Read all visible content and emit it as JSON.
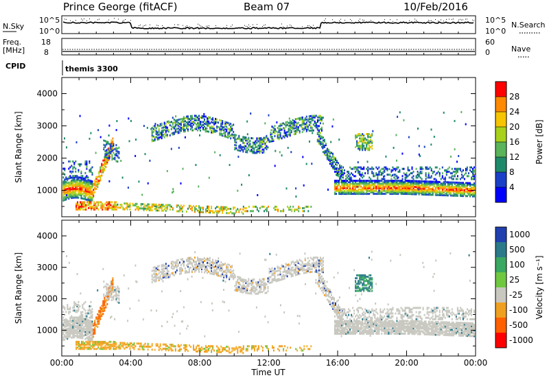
{
  "header": {
    "station": "Prince George (fitACF)",
    "beam": "Beam 07",
    "date": "10/Feb/2016"
  },
  "noise_panel": {
    "left_label": "N.Sky",
    "right_label": "N.Search",
    "left_ticks": [
      "10^5",
      "10^0"
    ],
    "right_ticks": [
      "10^5",
      "10^0"
    ]
  },
  "freq_panel": {
    "left_label_line1": "Freq.",
    "left_label_line2": "[MHz]",
    "right_label": "Nave",
    "left_ticks": [
      "18",
      "8"
    ],
    "right_ticks": [
      "60",
      "0"
    ]
  },
  "cpid": {
    "label": "CPID",
    "value": "themis 3300"
  },
  "chart_data": [
    {
      "type": "heatmap",
      "title": "Power",
      "ylabel": "Slant Range [km]",
      "ylim": [
        180,
        4500
      ],
      "y_ticks": [
        "1000",
        "2000",
        "3000",
        "4000"
      ],
      "colorbar_label": "Power [dB]",
      "colorbar_ticks": [
        "28",
        "24",
        "20",
        "16",
        "12",
        "8",
        "4"
      ],
      "colorbar_colors": [
        "#ff0000",
        "#ff8a00",
        "#f6c400",
        "#a8d21a",
        "#5ab45a",
        "#1f8a6a",
        "#1a40c8",
        "#0000ff"
      ]
    },
    {
      "type": "heatmap",
      "title": "Velocity",
      "ylabel": "Slant Range [km]",
      "ylim": [
        180,
        4500
      ],
      "y_ticks": [
        "1000",
        "2000",
        "3000",
        "4000"
      ],
      "colorbar_label": "Velocity [m s^-1]",
      "colorbar_ticks": [
        "1000",
        "500",
        "100",
        "25",
        "-25",
        "-100",
        "-500",
        "-1000"
      ],
      "colorbar_colors": [
        "#2040b0",
        "#2a7a8a",
        "#3aa860",
        "#70c840",
        "#c8c8c0",
        "#f0a020",
        "#ff6000",
        "#ff0000"
      ]
    }
  ],
  "x_axis": {
    "ticks": [
      "00:00",
      "04:00",
      "08:00",
      "12:00",
      "16:00",
      "20:00",
      "00:00"
    ],
    "label": "Time UT"
  }
}
